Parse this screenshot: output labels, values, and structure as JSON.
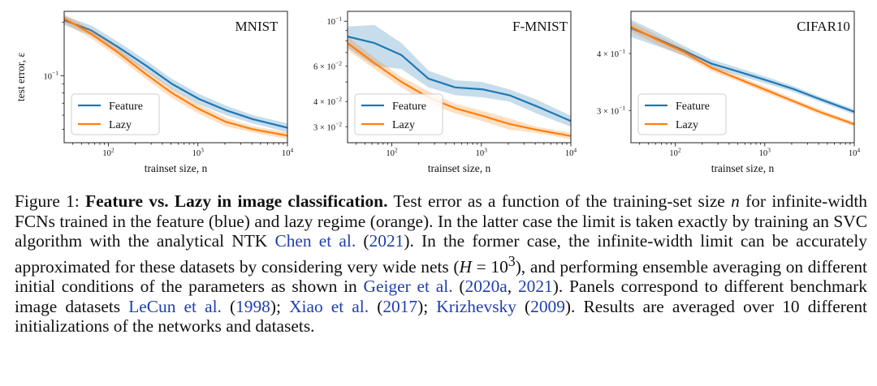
{
  "chart_data": [
    {
      "type": "line",
      "title": "MNIST",
      "xlabel": "trainset size, n",
      "ylabel": "test error, ε",
      "xscale": "log",
      "yscale": "log",
      "xlim": [
        32,
        10000
      ],
      "ylim": [
        0.042,
        0.23
      ],
      "xticks": [
        {
          "value": 100,
          "base": "10",
          "exp": "2"
        },
        {
          "value": 1000,
          "base": "10",
          "exp": "3"
        },
        {
          "value": 10000,
          "base": "10",
          "exp": "4"
        }
      ],
      "yticks": [
        {
          "value": 0.1,
          "base": "10",
          "exp": "−1"
        }
      ],
      "legend_position": "lower-left",
      "series": [
        {
          "name": "Feature",
          "color": "#1f77b4",
          "x": [
            32,
            64,
            128,
            256,
            512,
            1024,
            2048,
            4096,
            10000
          ],
          "y": [
            0.205,
            0.18,
            0.145,
            0.115,
            0.09,
            0.074,
            0.064,
            0.057,
            0.051
          ],
          "band": [
            0.012,
            0.012,
            0.01,
            0.008,
            0.006,
            0.005,
            0.004,
            0.003,
            0.003
          ]
        },
        {
          "name": "Lazy",
          "color": "#ff7f0e",
          "x": [
            32,
            64,
            128,
            256,
            512,
            1024,
            2048,
            4096,
            10000
          ],
          "y": [
            0.21,
            0.172,
            0.135,
            0.103,
            0.08,
            0.065,
            0.055,
            0.05,
            0.046
          ],
          "band": [
            0.012,
            0.01,
            0.008,
            0.006,
            0.005,
            0.004,
            0.003,
            0.002,
            0.002
          ]
        }
      ]
    },
    {
      "type": "line",
      "title": "F-MNIST",
      "xlabel": "trainset size, n",
      "ylabel": "",
      "xscale": "log",
      "yscale": "log",
      "xlim": [
        32,
        10000
      ],
      "ylim": [
        0.025,
        0.112
      ],
      "xticks": [
        {
          "value": 100,
          "base": "10",
          "exp": "2"
        },
        {
          "value": 1000,
          "base": "10",
          "exp": "3"
        },
        {
          "value": 10000,
          "base": "10",
          "exp": "4"
        }
      ],
      "yticks": [
        {
          "value": 0.1,
          "base": "10",
          "exp": "−1"
        },
        {
          "value": 0.06,
          "base": "6 × 10",
          "exp": "−2"
        },
        {
          "value": 0.04,
          "base": "4 × 10",
          "exp": "−2"
        },
        {
          "value": 0.03,
          "base": "3 × 10",
          "exp": "−2"
        }
      ],
      "legend_position": "lower-left",
      "series": [
        {
          "name": "Feature",
          "color": "#1f77b4",
          "x": [
            32,
            64,
            128,
            256,
            512,
            1024,
            2048,
            4096,
            10000
          ],
          "y": [
            0.084,
            0.078,
            0.068,
            0.052,
            0.047,
            0.046,
            0.043,
            0.038,
            0.032
          ],
          "band": [
            0.01,
            0.018,
            0.01,
            0.005,
            0.004,
            0.004,
            0.003,
            0.003,
            0.002
          ]
        },
        {
          "name": "Lazy",
          "color": "#ff7f0e",
          "x": [
            32,
            64,
            128,
            256,
            512,
            1024,
            2048,
            4096,
            10000
          ],
          "y": [
            0.078,
            0.062,
            0.05,
            0.042,
            0.037,
            0.034,
            0.031,
            0.029,
            0.027
          ],
          "band": [
            0.006,
            0.004,
            0.003,
            0.003,
            0.002,
            0.002,
            0.002,
            0.001,
            0.001
          ]
        }
      ]
    },
    {
      "type": "line",
      "title": "CIFAR10",
      "xlabel": "trainset size, n",
      "ylabel": "",
      "xscale": "log",
      "yscale": "log",
      "xlim": [
        32,
        10000
      ],
      "ylim": [
        0.255,
        0.495
      ],
      "xticks": [
        {
          "value": 100,
          "base": "10",
          "exp": "2"
        },
        {
          "value": 1000,
          "base": "10",
          "exp": "3"
        },
        {
          "value": 10000,
          "base": "10",
          "exp": "4"
        }
      ],
      "yticks": [
        {
          "value": 0.4,
          "base": "4 × 10",
          "exp": "−1"
        },
        {
          "value": 0.3,
          "base": "3 × 10",
          "exp": "−1"
        }
      ],
      "legend_position": "lower-left",
      "series": [
        {
          "name": "Feature",
          "color": "#1f77b4",
          "x": [
            32,
            64,
            128,
            256,
            512,
            1024,
            2048,
            4096,
            10000
          ],
          "y": [
            0.455,
            0.43,
            0.405,
            0.38,
            0.365,
            0.35,
            0.335,
            0.318,
            0.298
          ],
          "band": [
            0.02,
            0.015,
            0.01,
            0.008,
            0.007,
            0.006,
            0.005,
            0.004,
            0.004
          ]
        },
        {
          "name": "Lazy",
          "color": "#ff7f0e",
          "x": [
            32,
            64,
            128,
            256,
            512,
            1024,
            2048,
            4096,
            10000
          ],
          "y": [
            0.458,
            0.428,
            0.402,
            0.372,
            0.352,
            0.333,
            0.315,
            0.298,
            0.28
          ],
          "band": [
            0.012,
            0.01,
            0.008,
            0.006,
            0.005,
            0.005,
            0.004,
            0.004,
            0.003
          ]
        }
      ]
    }
  ],
  "caption": {
    "figure_label": "Figure 1:",
    "bold_title": "Feature vs. Lazy in image classification.",
    "text_1": "Test error as a function of the training-set size",
    "var_n": "n",
    "text_2": "for infinite-width FCNs trained in the feature (blue) and lazy regime (orange). In the latter case the limit is taken exactly by training an SVC algorithm with the analytical NTK",
    "cite_chen": "Chen et al.",
    "cite_chen_year": "2021",
    "text_3": ". In the former case, the infinite-width limit can be accurately approximated for these datasets by considering very wide nets (",
    "var_H": "H",
    "eq": " = 10",
    "eq_exp": "3",
    "text_4": "), and performing ensemble averaging on different initial conditions of the parameters as shown in",
    "cite_geiger": "Geiger et al.",
    "cite_geiger_year1": "2020a",
    "cite_geiger_year2": "2021",
    "text_5": ". Panels correspond to different benchmark image datasets",
    "cite_lecun": "LeCun et al.",
    "cite_lecun_year": "1998",
    "cite_xiao": "Xiao et al.",
    "cite_xiao_year": "2017",
    "cite_kriz": "Krizhevsky",
    "cite_kriz_year": "2009",
    "text_6": ". Results are averaged over 10 different initializations of the networks and datasets."
  }
}
